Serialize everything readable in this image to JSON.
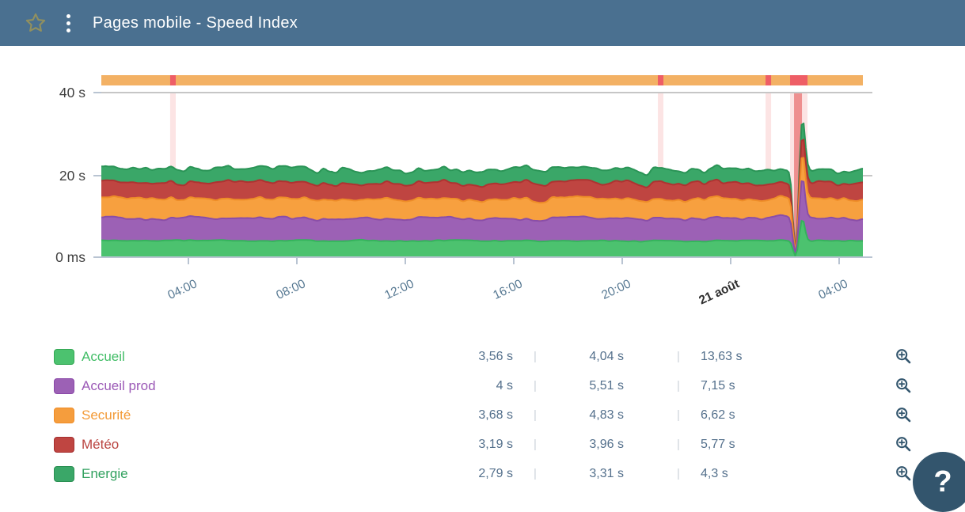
{
  "header": {
    "title": "Pages mobile - Speed Index",
    "star_icon": "favorite-star-outline",
    "menu_icon": "kebab-vertical-dots"
  },
  "colors": {
    "header_bg": "#4a7090",
    "star": "#91905f",
    "availability_bar": "#f3b164",
    "availability_incident": "#ee5e66",
    "incident_band": "rgba(235,87,87,0.16)",
    "incident_band_core": "rgba(224,58,58,0.5)",
    "gridline": "#b4b4b4",
    "axis_line": "#b9c4d2",
    "x_label": "#567892",
    "x_label_emph": "#303030",
    "y_label": "#404040",
    "value_text": "#54708c",
    "help_bg": "#33556d"
  },
  "chart_data": {
    "type": "area",
    "stacked": true,
    "unit": "s",
    "title": "Pages mobile - Speed Index",
    "ylim": [
      0,
      42
    ],
    "y_tick_labels": [
      "40 s",
      "20 s",
      "0 ms"
    ],
    "y_tick_values": [
      40,
      20,
      0
    ],
    "x_tick_labels": [
      "04:00",
      "08:00",
      "12:00",
      "16:00",
      "20:00",
      "21 août",
      "04:00"
    ],
    "x_tick_emphasis": [
      false,
      false,
      false,
      false,
      false,
      true,
      false
    ],
    "grid": "horizontal-only",
    "legend_position": "bottom-table",
    "series": [
      {
        "name": "Accueil",
        "avg_s": 4.04,
        "min_s": 3.56,
        "max_s": 13.63,
        "fill": "#4cc26f",
        "stroke": "#35b35c",
        "noise_amp": 0.028,
        "spike_amp": 1.35
      },
      {
        "name": "Accueil prod",
        "avg_s": 5.51,
        "min_s": 4.0,
        "max_s": 7.15,
        "fill": "#9c61b5",
        "stroke": "#8a4ea7",
        "noise_amp": 0.055,
        "spike_amp": 0.85
      },
      {
        "name": "Securité",
        "avg_s": 4.83,
        "min_s": 3.68,
        "max_s": 6.62,
        "fill": "#f7a03f",
        "stroke": "#ee8d28",
        "noise_amp": 0.05,
        "spike_amp": 0.18
      },
      {
        "name": "Météo",
        "avg_s": 3.96,
        "min_s": 3.19,
        "max_s": 5.77,
        "fill": "#bf4541",
        "stroke": "#ae3331",
        "noise_amp": 0.075,
        "spike_amp": 0.18
      },
      {
        "name": "Energie",
        "avg_s": 3.31,
        "min_s": 2.79,
        "max_s": 4.3,
        "fill": "#3aa768",
        "stroke": "#2a9456",
        "noise_amp": 0.075,
        "spike_amp": 0.32
      }
    ],
    "availability_incident_fracs": [
      {
        "start": 0.0904,
        "width": 0.0073
      },
      {
        "start": 0.7308,
        "width": 0.0073
      },
      {
        "start": 0.8722,
        "width": 0.0073
      },
      {
        "start": 0.9044,
        "width": 0.0229
      }
    ],
    "incident_band_core": {
      "start": 0.9096,
      "width": 0.0104
    },
    "anomaly": {
      "dip_frac": 0.9115,
      "spike_frac": 0.9205,
      "spike_total_s": 33
    }
  },
  "legend": {
    "rows": [
      {
        "name": "Accueil",
        "swatch": "#4cc26f",
        "border": "#35a855",
        "text_color": "#41bd66",
        "values": [
          "3,56 s",
          "4,04 s",
          "13,63 s"
        ]
      },
      {
        "name": "Accueil prod",
        "swatch": "#9c61b5",
        "border": "#8a48a8",
        "text_color": "#9b59b6",
        "values": [
          "4 s",
          "5,51 s",
          "7,15 s"
        ]
      },
      {
        "name": "Securité",
        "swatch": "#f59d3d",
        "border": "#ef8c26",
        "text_color": "#f39a36",
        "values": [
          "3,68 s",
          "4,83 s",
          "6,62 s"
        ]
      },
      {
        "name": "Météo",
        "swatch": "#bf4541",
        "border": "#a53030",
        "text_color": "#b9423e",
        "values": [
          "3,19 s",
          "3,96 s",
          "5,77 s"
        ]
      },
      {
        "name": "Energie",
        "swatch": "#3aa768",
        "border": "#2a8f52",
        "text_color": "#31a15f",
        "values": [
          "2,79 s",
          "3,31 s",
          "4,3 s"
        ]
      }
    ],
    "separator": "|",
    "zoom_icon": "zoom-in-magnifier"
  },
  "help": {
    "label": "?"
  }
}
